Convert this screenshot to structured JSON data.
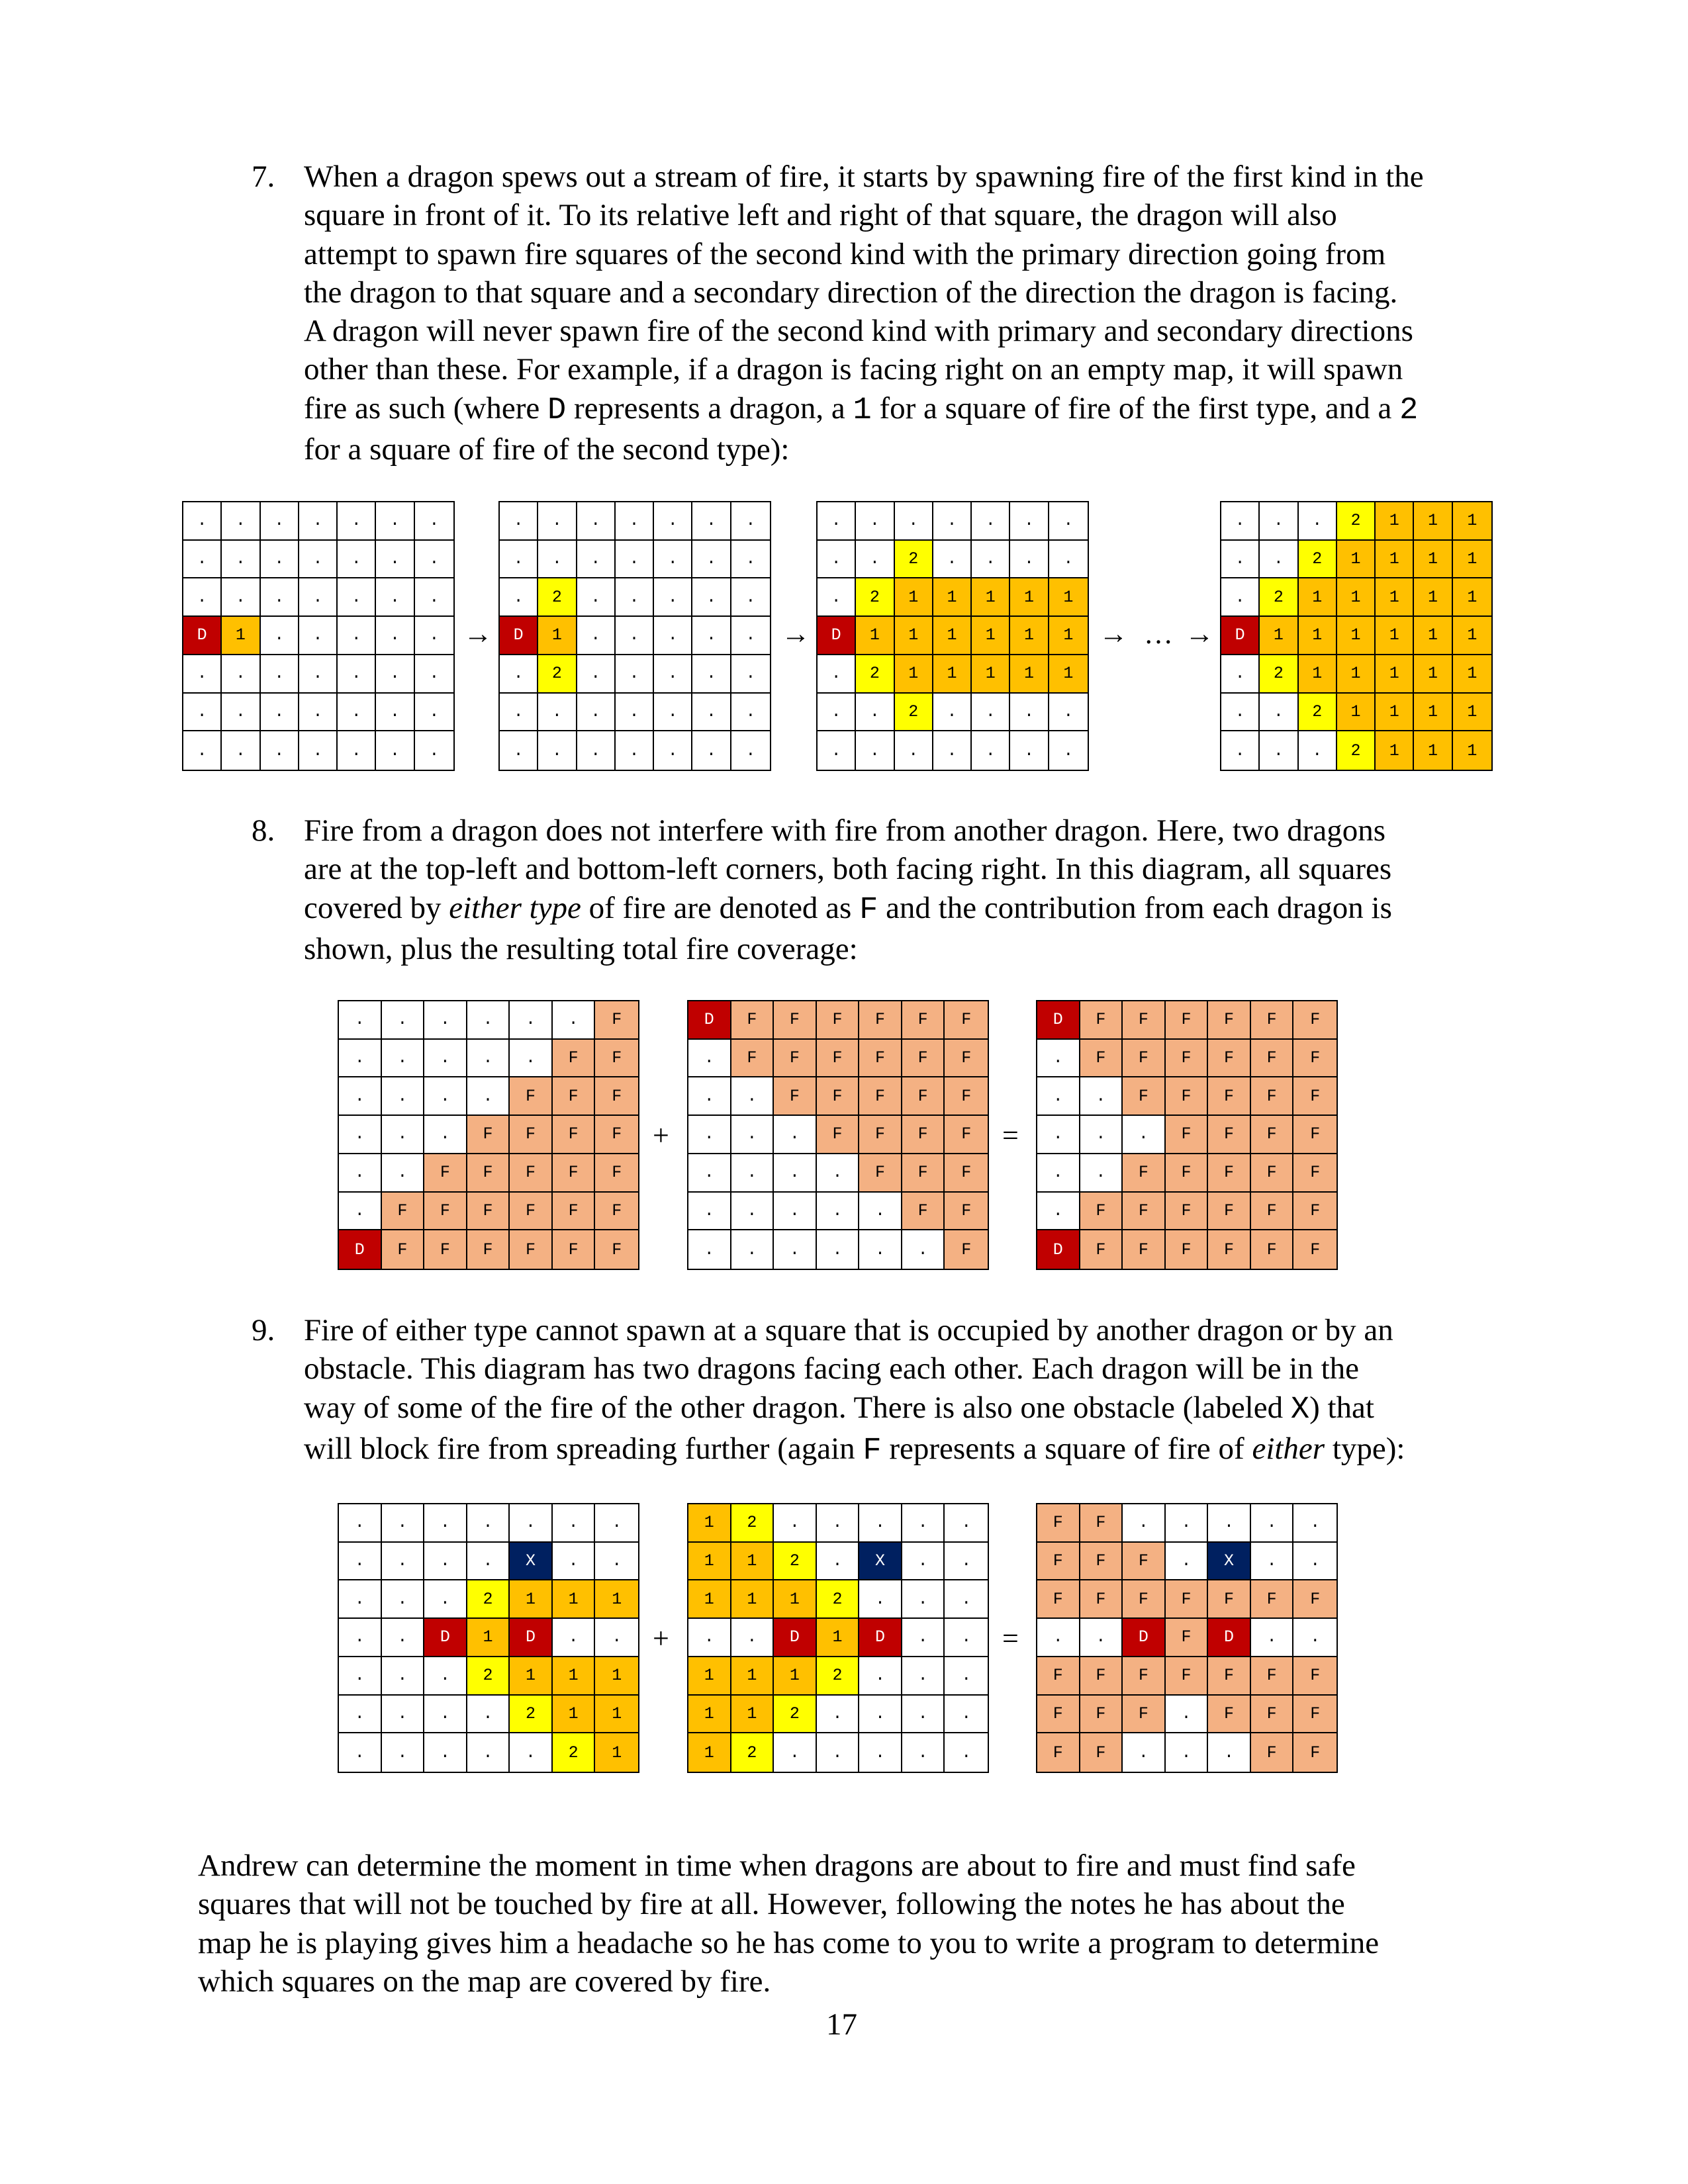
{
  "items": [
    {
      "number": "7.",
      "lines": [
        "When a dragon spews out a stream of fire, it starts by spawning fire of the first kind in the",
        "square in front of it.  To its relative left and right of that square, the dragon will also",
        "attempt to spawn fire squares of the second kind with the primary direction going from",
        "the dragon to that square and a secondary direction of the direction the dragon is facing.",
        "A dragon will never spawn fire of the second kind with primary and secondary directions",
        "other than these.  For example, if a dragon is facing right on an empty map, it will spawn"
      ],
      "line7": [
        "fire as such (where ",
        "D",
        " represents a dragon, a ",
        "1",
        " for a square of fire of the first type, and a ",
        "2"
      ],
      "line8": "for a square of fire of the second type):"
    },
    {
      "number": "8.",
      "line1": "Fire from a dragon does not interfere with fire from another dragon.  Here, two dragons",
      "line2": "are at the top-left and bottom-left corners, both facing right.  In this diagram, all squares",
      "line3": [
        "covered by ",
        "either type",
        " of fire are denoted as ",
        "F",
        " and the contribution from each dragon is"
      ],
      "line4": "shown, plus the resulting total fire coverage:"
    },
    {
      "number": "9.",
      "line1": "Fire of either type cannot spawn at a square that is occupied by another dragon or by an",
      "line2": "obstacle.  This diagram has two dragons facing each other.  Each dragon will be in the",
      "line3": [
        "way of some of the fire of the other dragon.  There is also one obstacle (labeled ",
        "X",
        ") that"
      ],
      "line4": [
        "will block fire from spreading further (again ",
        "F",
        " represents a square of fire of ",
        "either",
        " type):"
      ]
    }
  ],
  "closing": [
    "Andrew can determine the moment in time when dragons are about to fire and must find safe",
    "squares that will not be touched by fire at all.  However, following the notes he has about the",
    "map he is playing gives him a headache so he has come to you to write a program to determine",
    "which squares on the map are covered by fire."
  ],
  "page_number": "17",
  "operators": {
    "arrow": "→",
    "ellipsis": "…",
    "plus": "+",
    "equals": "="
  },
  "colors": {
    "dragon": "#c00000",
    "fire_first": "#ffc000",
    "fire_second": "#ffff00",
    "fire_either": "#f4b183",
    "obstacle": "#002060",
    "empty": "#ffffff"
  },
  "grids": {
    "g7a": [
      ".......",
      ".......",
      ".......",
      "D1.....",
      ".......",
      ".......",
      "......."
    ],
    "g7b": [
      ".......",
      ".......",
      ".2.....",
      "D1.....",
      ".2.....",
      ".......",
      "......."
    ],
    "g7c": [
      ".......",
      "..2....",
      ".211111",
      "D111111",
      ".211111",
      "..2....",
      "......."
    ],
    "g7d": [
      "...2111",
      "..21111",
      ".211111",
      "D111111",
      ".211111",
      "..21111",
      "...2111"
    ],
    "g8a": [
      "......F",
      ".....FF",
      "....FFF",
      "...FFFF",
      "..FFFFF",
      ".FFFFFF",
      "DFFFFFF"
    ],
    "g8b": [
      "DFFFFFF",
      ".FFFFFF",
      "..FFFFF",
      "...FFFF",
      "....FFF",
      ".....FF",
      "......F"
    ],
    "g8c": [
      "DFFFFFF",
      ".FFFFFF",
      "..FFFFF",
      "...FFFF",
      "..FFFFF",
      ".FFFFFF",
      "DFFFFFF"
    ],
    "g9a": [
      ".......",
      "....X..",
      "...2111",
      "..D1D..",
      "...2111",
      "....211",
      ".....21"
    ],
    "g9b": [
      "12.....",
      "112.X..",
      "1112...",
      "..D1D..",
      "1112...",
      "112....",
      "12....."
    ],
    "g9c": [
      "FF.....",
      "FFF.X..",
      "FFFFFFF",
      "..DFD..",
      "FFFFFFF",
      "FFF.FFF",
      "FF...FF"
    ]
  }
}
